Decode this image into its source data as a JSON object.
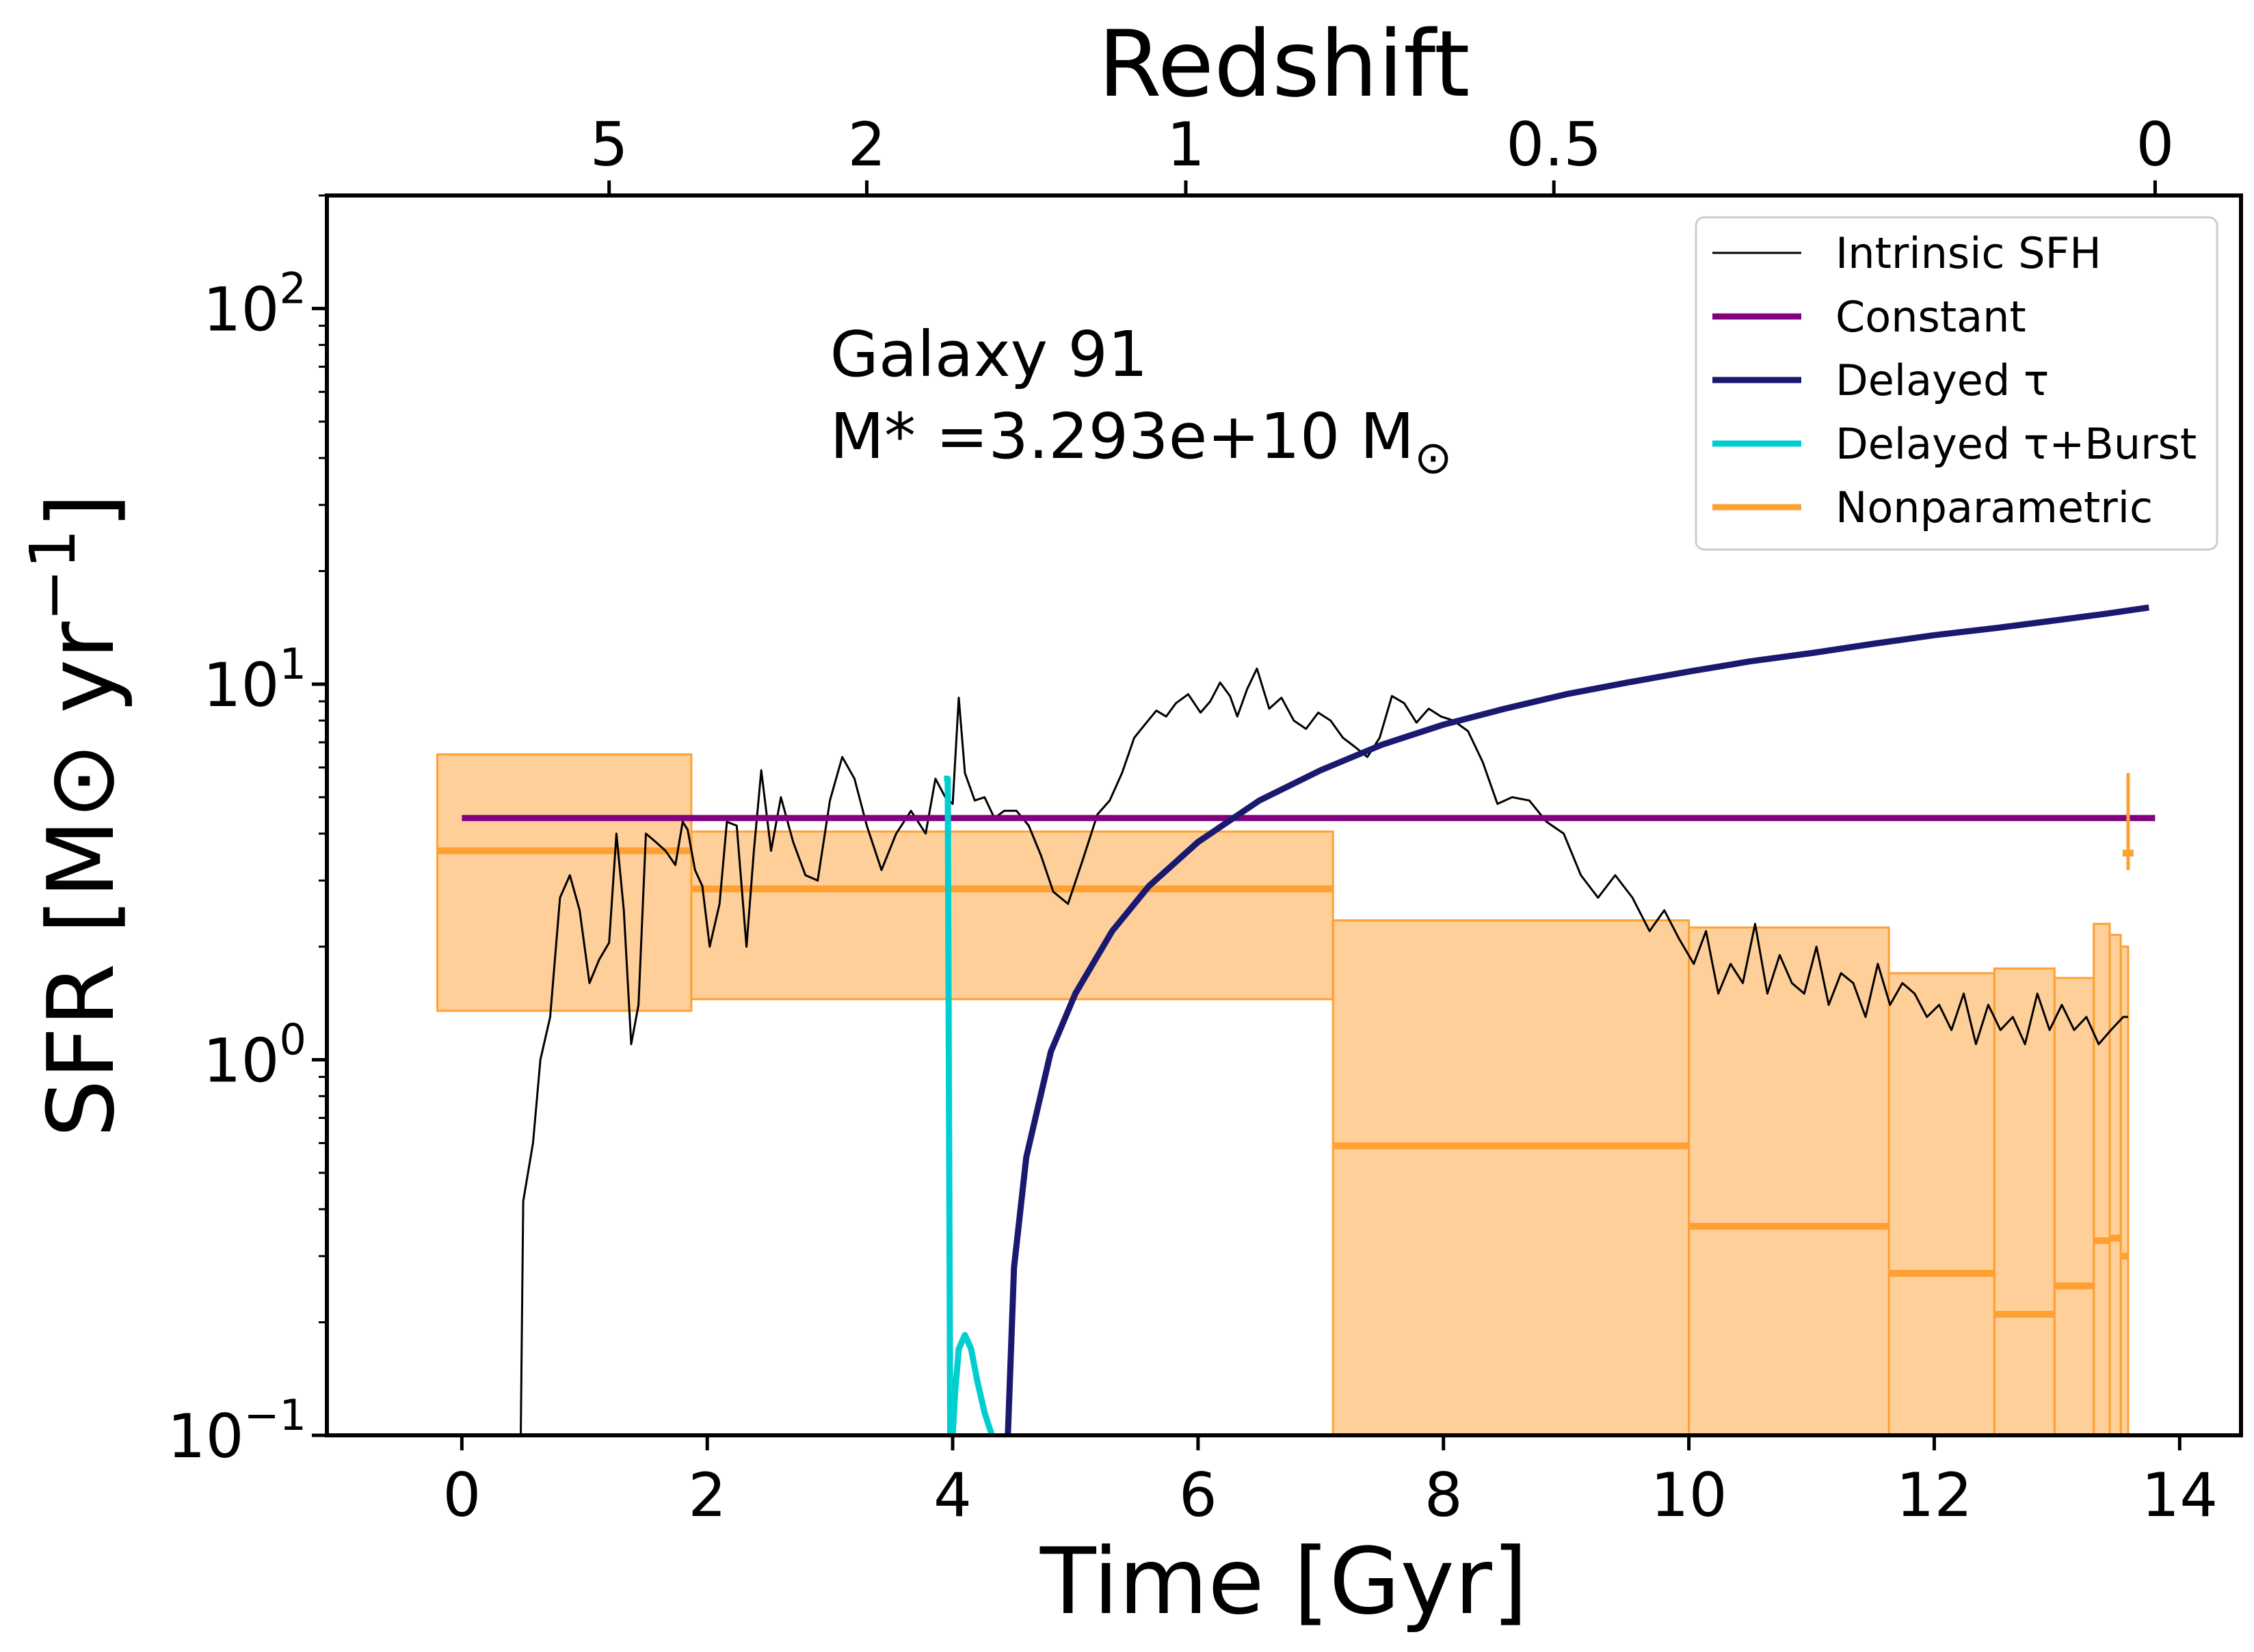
{
  "chart_data": {
    "type": "line",
    "title": "",
    "xlabel": "Time [Gyr]",
    "ylabel_parts": [
      "SFR [M",
      "⊙",
      " yr",
      "−1",
      "]"
    ],
    "top_axis_label": "Redshift",
    "annotation": {
      "line1": "Galaxy 91",
      "line2_parts": [
        "M* =3.293e+10 M",
        "⊙"
      ]
    },
    "xlim": [
      -1.1,
      14.5
    ],
    "ylim": [
      0.1,
      200
    ],
    "yscale": "log",
    "x_ticks": [
      0,
      2,
      4,
      6,
      8,
      10,
      12,
      14
    ],
    "x_tick_labels": [
      "0",
      "2",
      "4",
      "6",
      "8",
      "10",
      "12",
      "14"
    ],
    "y_ticks": [
      {
        "value": 100,
        "base": "10",
        "exp": "2"
      },
      {
        "value": 10,
        "base": "10",
        "exp": "1"
      },
      {
        "value": 1,
        "base": "10",
        "exp": "0"
      },
      {
        "value": 0.1,
        "base": "10",
        "exp": "−1"
      }
    ],
    "top_ticks": [
      {
        "label": "5",
        "time": 1.2
      },
      {
        "label": "2",
        "time": 3.3
      },
      {
        "label": "1",
        "time": 5.9
      },
      {
        "label": "0.5",
        "time": 8.9
      },
      {
        "label": "0",
        "time": 13.8
      }
    ],
    "legend": {
      "position": "top-right",
      "entries": [
        {
          "label": "Intrinsic SFH",
          "color": "#000000",
          "kind": "thin"
        },
        {
          "label": "Constant",
          "color": "#800080",
          "kind": "thick"
        },
        {
          "label": "Delayed τ",
          "color": "#191970",
          "kind": "thick"
        },
        {
          "label": "Delayed τ+Burst",
          "color": "#00CED1",
          "kind": "thick"
        },
        {
          "label": "Nonparametric",
          "color": "#FFA033",
          "kind": "thick"
        }
      ]
    },
    "series": [
      {
        "name": "Intrinsic SFH",
        "color": "#000000",
        "x": [
          0.48,
          0.5,
          0.58,
          0.64,
          0.72,
          0.8,
          0.88,
          0.96,
          1.04,
          1.12,
          1.2,
          1.26,
          1.32,
          1.38,
          1.44,
          1.5,
          1.58,
          1.66,
          1.74,
          1.8,
          1.84,
          1.9,
          1.96,
          2.02,
          2.1,
          2.16,
          2.24,
          2.32,
          2.38,
          2.44,
          2.52,
          2.6,
          2.7,
          2.8,
          2.9,
          3.0,
          3.1,
          3.2,
          3.3,
          3.42,
          3.54,
          3.66,
          3.78,
          3.86,
          3.94,
          4.0,
          4.05,
          4.1,
          4.18,
          4.26,
          4.34,
          4.42,
          4.52,
          4.62,
          4.72,
          4.82,
          4.94,
          5.06,
          5.18,
          5.28,
          5.38,
          5.48,
          5.58,
          5.66,
          5.74,
          5.82,
          5.92,
          6.02,
          6.1,
          6.18,
          6.26,
          6.32,
          6.4,
          6.48,
          6.58,
          6.68,
          6.78,
          6.88,
          6.98,
          7.08,
          7.18,
          7.28,
          7.38,
          7.48,
          7.58,
          7.68,
          7.78,
          7.88,
          7.98,
          8.08,
          8.2,
          8.32,
          8.44,
          8.56,
          8.7,
          8.84,
          8.98,
          9.12,
          9.26,
          9.4,
          9.54,
          9.68,
          9.8,
          9.92,
          10.04,
          10.14,
          10.24,
          10.34,
          10.44,
          10.54,
          10.64,
          10.74,
          10.84,
          10.94,
          11.04,
          11.14,
          11.24,
          11.34,
          11.44,
          11.54,
          11.64,
          11.74,
          11.84,
          11.94,
          12.04,
          12.14,
          12.24,
          12.34,
          12.44,
          12.54,
          12.64,
          12.74,
          12.84,
          12.94,
          13.04,
          13.14,
          13.24,
          13.34,
          13.44,
          13.54,
          13.58
        ],
        "y": [
          0.1,
          0.42,
          0.6,
          1.0,
          1.3,
          2.7,
          3.1,
          2.5,
          1.6,
          1.85,
          2.05,
          4.0,
          2.5,
          1.1,
          1.4,
          4.0,
          3.8,
          3.6,
          3.3,
          4.3,
          4.1,
          3.2,
          2.9,
          2.0,
          2.6,
          4.3,
          4.2,
          2.0,
          3.6,
          5.9,
          3.6,
          5.0,
          3.8,
          3.1,
          3.0,
          4.9,
          6.4,
          5.6,
          4.2,
          3.2,
          4.0,
          4.6,
          4.0,
          5.6,
          5.0,
          4.8,
          9.2,
          5.8,
          4.9,
          5.0,
          4.4,
          4.6,
          4.6,
          4.2,
          3.5,
          2.8,
          2.6,
          3.4,
          4.5,
          4.9,
          5.8,
          7.2,
          7.9,
          8.5,
          8.2,
          8.9,
          9.4,
          8.4,
          9.0,
          10.1,
          9.3,
          8.2,
          9.7,
          11.0,
          8.6,
          9.2,
          8.0,
          7.6,
          8.4,
          8.0,
          7.2,
          6.8,
          6.4,
          7.2,
          9.3,
          8.9,
          7.9,
          8.6,
          8.2,
          8.0,
          7.5,
          6.2,
          4.8,
          5.0,
          4.9,
          4.3,
          4.0,
          3.1,
          2.7,
          3.1,
          2.7,
          2.2,
          2.5,
          2.1,
          1.8,
          2.2,
          1.5,
          1.8,
          1.6,
          2.3,
          1.5,
          1.9,
          1.6,
          1.5,
          2.0,
          1.4,
          1.7,
          1.6,
          1.3,
          1.8,
          1.4,
          1.6,
          1.5,
          1.3,
          1.4,
          1.2,
          1.5,
          1.1,
          1.4,
          1.2,
          1.3,
          1.1,
          1.5,
          1.2,
          1.4,
          1.2,
          1.3,
          1.1,
          1.2,
          1.3,
          1.3
        ]
      },
      {
        "name": "Constant",
        "color": "#800080",
        "x": [
          0.0,
          13.8
        ],
        "y": [
          4.4,
          4.4
        ]
      },
      {
        "name": "Delayed τ",
        "color": "#191970",
        "x": [
          4.45,
          4.5,
          4.6,
          4.8,
          5.0,
          5.3,
          5.6,
          6.0,
          6.5,
          7.0,
          7.5,
          8.0,
          8.5,
          9.0,
          9.5,
          10.0,
          10.5,
          11.0,
          11.5,
          12.0,
          12.5,
          13.0,
          13.4,
          13.75
        ],
        "y": [
          0.1,
          0.28,
          0.55,
          1.05,
          1.5,
          2.2,
          2.9,
          3.8,
          4.9,
          5.9,
          6.9,
          7.8,
          8.6,
          9.4,
          10.1,
          10.8,
          11.5,
          12.1,
          12.8,
          13.5,
          14.1,
          14.8,
          15.4,
          16.0
        ]
      },
      {
        "name": "Delayed τ+Burst",
        "color": "#00CED1",
        "x": [
          3.93,
          3.96,
          3.98,
          4.0,
          4.02,
          4.05,
          4.1,
          4.15,
          4.2,
          4.26,
          4.32
        ],
        "y": [
          5.6,
          5.6,
          0.1,
          0.1,
          0.13,
          0.17,
          0.185,
          0.17,
          0.14,
          0.115,
          0.1
        ]
      }
    ],
    "nonparametric_bins": [
      {
        "x0": -0.2,
        "x1": 1.87,
        "low": 1.35,
        "high": 6.5,
        "median": 3.6
      },
      {
        "x0": 1.87,
        "x1": 7.1,
        "low": 1.45,
        "high": 4.05,
        "median": 2.85
      },
      {
        "x0": 7.1,
        "x1": 10.0,
        "low": 0.1,
        "high": 2.35,
        "median": 0.59
      },
      {
        "x0": 10.0,
        "x1": 11.63,
        "low": 0.1,
        "high": 2.25,
        "median": 0.36
      },
      {
        "x0": 11.63,
        "x1": 12.49,
        "low": 0.1,
        "high": 1.7,
        "median": 0.27
      },
      {
        "x0": 12.49,
        "x1": 12.98,
        "low": 0.1,
        "high": 1.75,
        "median": 0.21
      },
      {
        "x0": 12.98,
        "x1": 13.3,
        "low": 0.1,
        "high": 1.65,
        "median": 0.25
      },
      {
        "x0": 13.3,
        "x1": 13.43,
        "low": 0.1,
        "high": 2.3,
        "median": 0.33
      },
      {
        "x0": 13.43,
        "x1": 13.52,
        "low": 0.1,
        "high": 2.15,
        "median": 0.335
      },
      {
        "x0": 13.52,
        "x1": 13.58,
        "low": 0.1,
        "high": 2.0,
        "median": 0.3
      }
    ],
    "nonparametric_errorbar": {
      "x": 13.58,
      "low": 3.2,
      "high": 5.8,
      "median": 3.55
    }
  }
}
